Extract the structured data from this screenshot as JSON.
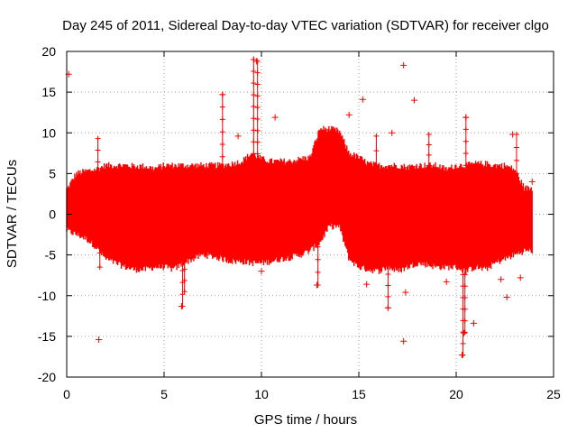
{
  "chart_data": {
    "type": "scatter",
    "title": "Day 245 of 2011, Sidereal Day-to-day VTEC variation (SDTVAR) for receiver clgo",
    "xlabel": "GPS time / hours",
    "ylabel": "SDTVAR / TECUs",
    "xlim": [
      0,
      25
    ],
    "ylim": [
      -20,
      20
    ],
    "xticks": [
      0,
      5,
      10,
      15,
      20,
      25
    ],
    "yticks": [
      -20,
      -15,
      -10,
      -5,
      0,
      5,
      10,
      15,
      20
    ],
    "xtick_labels": [
      "0",
      "5",
      "10",
      "15",
      "20",
      "25"
    ],
    "ytick_labels": [
      "-20",
      "-15",
      "-10",
      "-5",
      "0",
      "5",
      "10",
      "15",
      "20"
    ],
    "grid": true,
    "color": "#ff0000",
    "marker": "+",
    "band_envelope": {
      "x": [
        0.0,
        0.5,
        1.0,
        1.5,
        2.0,
        2.5,
        3.0,
        3.5,
        4.0,
        4.5,
        5.0,
        5.5,
        6.0,
        6.5,
        7.0,
        7.5,
        8.0,
        8.5,
        9.0,
        9.5,
        10.0,
        10.5,
        11.0,
        11.5,
        12.0,
        12.5,
        13.0,
        13.5,
        14.0,
        14.5,
        15.0,
        15.5,
        16.0,
        16.5,
        17.0,
        17.5,
        18.0,
        18.5,
        19.0,
        19.5,
        20.0,
        20.5,
        21.0,
        21.5,
        22.0,
        22.5,
        23.0,
        23.5,
        23.9
      ],
      "upper": [
        3.0,
        5.0,
        5.3,
        5.5,
        6.0,
        6.0,
        6.0,
        5.9,
        5.9,
        5.6,
        6.0,
        6.0,
        6.0,
        6.0,
        6.0,
        6.0,
        6.0,
        6.2,
        6.5,
        7.5,
        6.8,
        6.5,
        6.5,
        6.5,
        6.8,
        7.0,
        10.5,
        10.5,
        10.2,
        7.5,
        7.0,
        6.2,
        6.0,
        6.0,
        6.0,
        5.8,
        6.0,
        6.0,
        6.0,
        5.5,
        6.0,
        6.0,
        6.2,
        6.2,
        6.0,
        6.0,
        5.5,
        3.2,
        3.2
      ],
      "lower": [
        -2.0,
        -2.5,
        -3.0,
        -4.0,
        -5.5,
        -6.0,
        -6.5,
        -6.8,
        -6.8,
        -6.5,
        -6.5,
        -6.8,
        -6.0,
        -5.5,
        -5.0,
        -5.2,
        -5.5,
        -5.8,
        -5.8,
        -6.0,
        -6.0,
        -5.8,
        -5.5,
        -5.3,
        -5.0,
        -4.5,
        -3.5,
        -1.5,
        -1.5,
        -5.5,
        -6.5,
        -6.8,
        -7.0,
        -6.5,
        -7.0,
        -6.5,
        -6.0,
        -6.2,
        -6.5,
        -6.5,
        -6.5,
        -7.0,
        -6.5,
        -6.8,
        -6.0,
        -5.5,
        -5.0,
        -4.5,
        -4.5
      ]
    },
    "spikes": [
      {
        "x": 8.0,
        "top": 14.7,
        "bottom": 4.0
      },
      {
        "x": 9.6,
        "top": 19.0,
        "bottom": 6.0
      },
      {
        "x": 9.8,
        "top": 18.8,
        "bottom": 6.0
      },
      {
        "x": 5.95,
        "top": -4.0,
        "bottom": -11.3
      },
      {
        "x": 6.05,
        "top": -4.0,
        "bottom": -9.5
      },
      {
        "x": 1.6,
        "top": 9.3,
        "bottom": 5.0
      },
      {
        "x": 1.7,
        "top": -3.0,
        "bottom": -6.5
      },
      {
        "x": 20.5,
        "top": 11.9,
        "bottom": 6.0
      },
      {
        "x": 20.35,
        "top": -6.0,
        "bottom": -17.3
      },
      {
        "x": 20.45,
        "top": -6.0,
        "bottom": -14.5
      },
      {
        "x": 16.5,
        "top": -6.0,
        "bottom": -11.5
      },
      {
        "x": 18.6,
        "top": 9.8,
        "bottom": 6.0
      },
      {
        "x": 12.9,
        "top": -4.0,
        "bottom": -8.7
      },
      {
        "x": 15.9,
        "top": 9.6,
        "bottom": 6.0
      },
      {
        "x": 23.1,
        "top": 9.8,
        "bottom": 5.0
      }
    ],
    "outliers": [
      {
        "x": 0.1,
        "y": 17.2
      },
      {
        "x": 1.65,
        "y": -15.4
      },
      {
        "x": 8.0,
        "y": 14.7
      },
      {
        "x": 9.6,
        "y": 19.0
      },
      {
        "x": 9.75,
        "y": 18.8
      },
      {
        "x": 10.7,
        "y": 11.9
      },
      {
        "x": 8.8,
        "y": 9.6
      },
      {
        "x": 5.9,
        "y": -11.3
      },
      {
        "x": 10.0,
        "y": -7.0
      },
      {
        "x": 12.85,
        "y": -8.7
      },
      {
        "x": 14.5,
        "y": 12.2
      },
      {
        "x": 15.2,
        "y": 14.1
      },
      {
        "x": 15.4,
        "y": -8.6
      },
      {
        "x": 17.3,
        "y": 18.3
      },
      {
        "x": 17.85,
        "y": 14.0
      },
      {
        "x": 16.5,
        "y": -11.5
      },
      {
        "x": 16.7,
        "y": 10.0
      },
      {
        "x": 17.3,
        "y": -15.6
      },
      {
        "x": 17.4,
        "y": -9.6
      },
      {
        "x": 19.5,
        "y": -8.3
      },
      {
        "x": 20.3,
        "y": -17.3
      },
      {
        "x": 20.4,
        "y": -14.6
      },
      {
        "x": 20.9,
        "y": -13.4
      },
      {
        "x": 20.5,
        "y": 11.9
      },
      {
        "x": 22.6,
        "y": -10.2
      },
      {
        "x": 22.9,
        "y": 9.8
      },
      {
        "x": 23.3,
        "y": -7.8
      },
      {
        "x": 23.9,
        "y": 4.0
      },
      {
        "x": 22.3,
        "y": -8.0
      }
    ]
  }
}
